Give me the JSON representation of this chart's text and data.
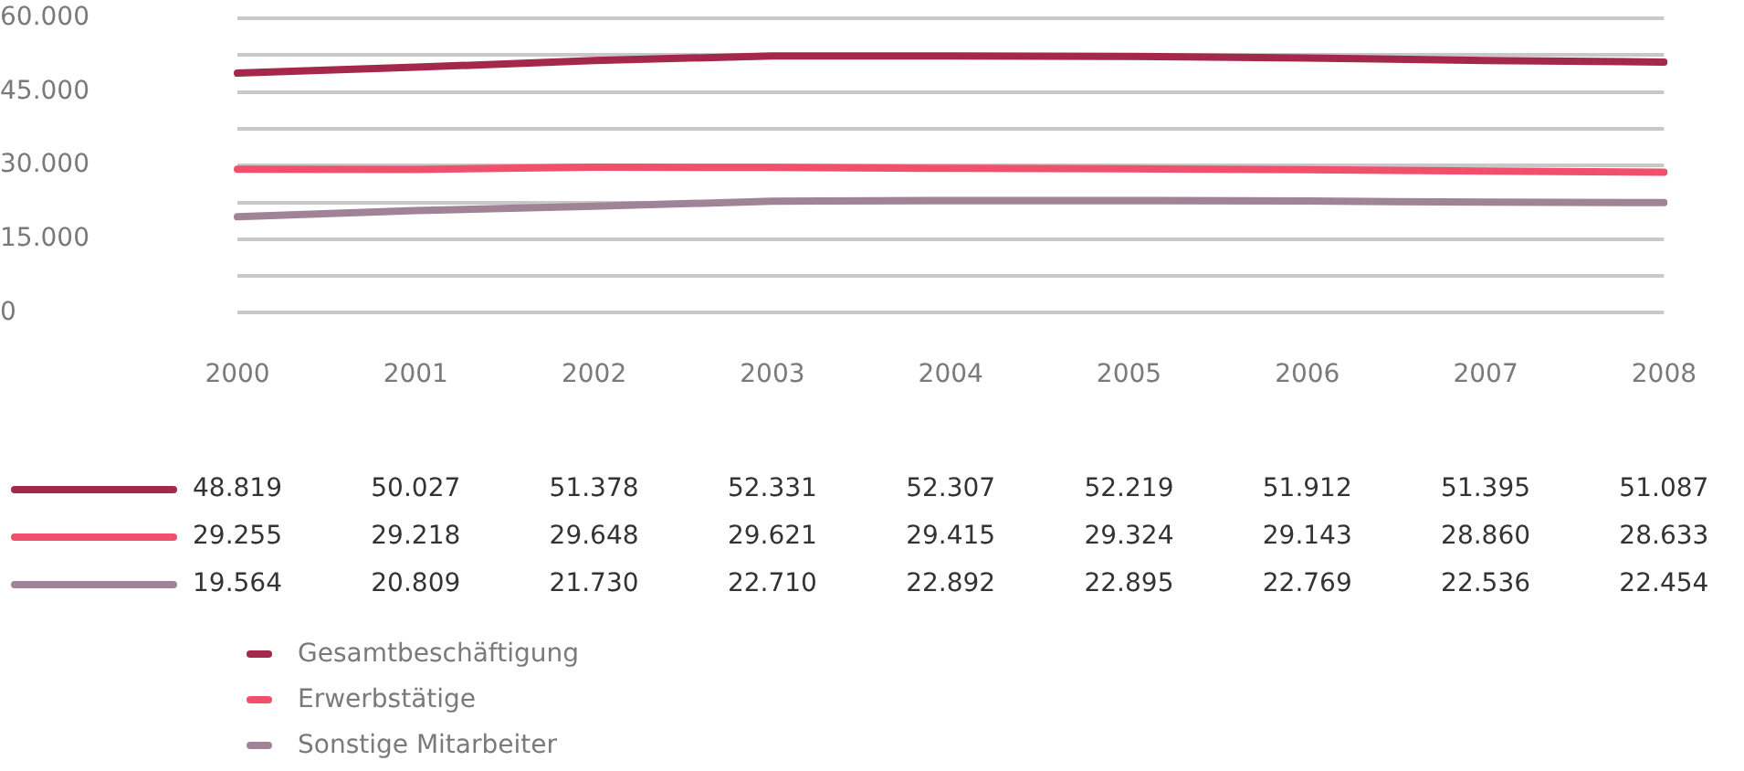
{
  "chart_data": {
    "type": "line",
    "categories": [
      "2000",
      "2001",
      "2002",
      "2003",
      "2004",
      "2005",
      "2006",
      "2007",
      "2008"
    ],
    "series": [
      {
        "name": "Gesamtbeschäftigung",
        "color": "#a3284b",
        "values": [
          48819,
          50027,
          51378,
          52331,
          52307,
          52219,
          51912,
          51395,
          51087
        ],
        "value_labels": [
          "48.819",
          "50.027",
          "51.378",
          "52.331",
          "52.307",
          "52.219",
          "51.912",
          "51.395",
          "51.087"
        ]
      },
      {
        "name": "Erwerbstätige",
        "color": "#f0506c",
        "values": [
          29255,
          29218,
          29648,
          29621,
          29415,
          29324,
          29143,
          28860,
          28633
        ],
        "value_labels": [
          "29.255",
          "29.218",
          "29.648",
          "29.621",
          "29.415",
          "29.324",
          "29.143",
          "28.860",
          "28.633"
        ]
      },
      {
        "name": "Sonstige Mitarbeiter",
        "color": "#a08396",
        "values": [
          19564,
          20809,
          21730,
          22710,
          22892,
          22895,
          22769,
          22536,
          22454
        ],
        "value_labels": [
          "19.564",
          "20.809",
          "21.730",
          "22.710",
          "22.892",
          "22.895",
          "22.769",
          "22.536",
          "22.454"
        ]
      }
    ],
    "ylim": [
      0,
      60000
    ],
    "yticks": [
      {
        "value": 0,
        "label": "0"
      },
      {
        "value": 7500,
        "label": null
      },
      {
        "value": 15000,
        "label": "15.000"
      },
      {
        "value": 22500,
        "label": null
      },
      {
        "value": 30000,
        "label": "30.000"
      },
      {
        "value": 37500,
        "label": null
      },
      {
        "value": 45000,
        "label": "45.000"
      },
      {
        "value": 52500,
        "label": null
      },
      {
        "value": 60000,
        "label": "60.000"
      }
    ],
    "grid": "y",
    "legend": "bottom",
    "marker": "none",
    "line_style": "solid"
  }
}
